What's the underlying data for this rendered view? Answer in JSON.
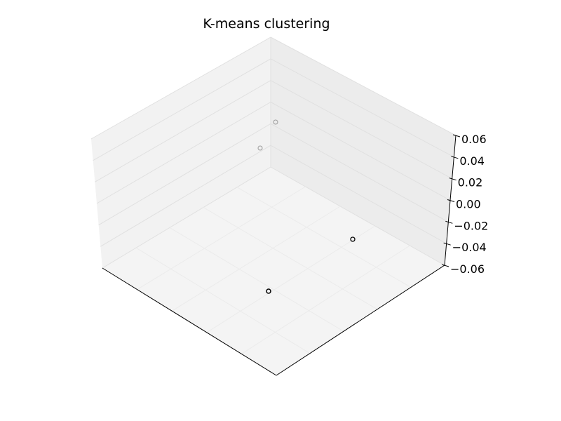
{
  "chart_data": {
    "type": "scatter",
    "title": "K-means clustering",
    "xlabel": "",
    "ylabel": "",
    "zlabel": "",
    "x_tick_labels": [],
    "y_tick_labels": [],
    "z_ticks": [
      -0.06,
      -0.04,
      -0.02,
      0.0,
      0.02,
      0.04,
      0.06
    ],
    "z_tick_labels": [
      "−0.06",
      "−0.04",
      "−0.02",
      "0.00",
      "0.02",
      "0.04",
      "0.06"
    ],
    "zlim": [
      -0.06,
      0.06
    ],
    "grid": true,
    "marker": "open-circle",
    "point_count": 4
  },
  "colors": {
    "pane_left": "#f2f2f2",
    "pane_right": "#ececec",
    "pane_floor": "#f4f4f4",
    "gridline": "#e0e0e0",
    "axis_line": "#000000",
    "marker_near": "#000000",
    "marker_far": "#9a9a9a"
  }
}
